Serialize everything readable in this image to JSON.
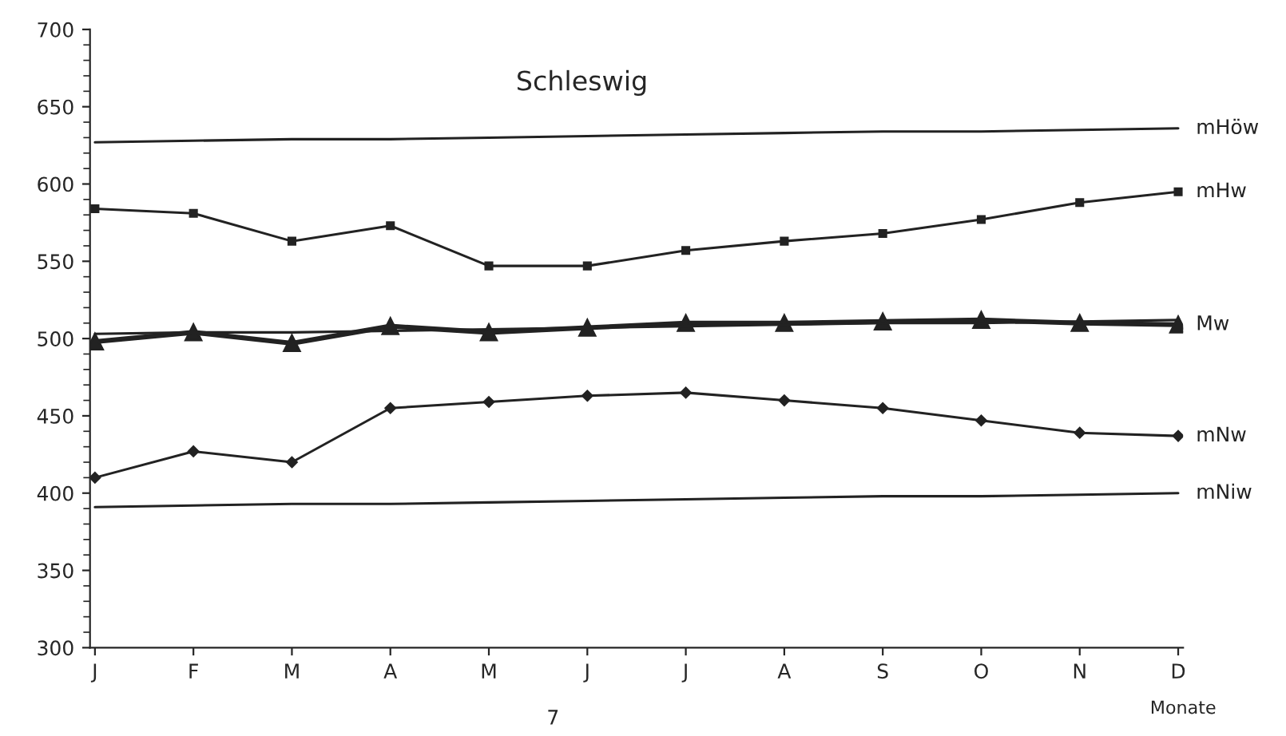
{
  "chart_data": {
    "type": "line",
    "title": "Schleswig",
    "xlabel": "Monate",
    "categories": [
      "J",
      "F",
      "M",
      "A",
      "M",
      "J",
      "J",
      "A",
      "S",
      "O",
      "N",
      "D"
    ],
    "series": [
      {
        "name": "mHöw",
        "color": "#222222",
        "marker": "none",
        "values": [
          627,
          628,
          629,
          629,
          630,
          631,
          632,
          633,
          634,
          634,
          635,
          636
        ]
      },
      {
        "name": "mHw",
        "color": "#222222",
        "marker": "square",
        "values": [
          584,
          581,
          563,
          573,
          547,
          547,
          557,
          563,
          568,
          577,
          588,
          595
        ]
      },
      {
        "name": "Mw",
        "color": "#222222",
        "marker": "triangle",
        "values": [
          498,
          504,
          497,
          508,
          504,
          507,
          510,
          510,
          511,
          512,
          510,
          509
        ]
      },
      {
        "color": "#222222",
        "marker": "none",
        "values": [
          503,
          504,
          504,
          505,
          506,
          507,
          508,
          509,
          510,
          510,
          511,
          512
        ]
      },
      {
        "name": "mNw",
        "color": "#222222",
        "marker": "diamond",
        "values": [
          410,
          427,
          420,
          455,
          459,
          463,
          465,
          460,
          455,
          447,
          439,
          437
        ]
      },
      {
        "name": "mNiw",
        "color": "#222222",
        "marker": "none",
        "values": [
          391,
          392,
          393,
          393,
          394,
          395,
          396,
          397,
          398,
          398,
          399,
          400
        ]
      }
    ],
    "ylim": [
      300,
      700
    ],
    "yticks": [
      300,
      350,
      400,
      450,
      500,
      550,
      600,
      650,
      700
    ],
    "grid": false,
    "legend": false,
    "line_style": "solid",
    "annotations": [
      "7"
    ]
  }
}
